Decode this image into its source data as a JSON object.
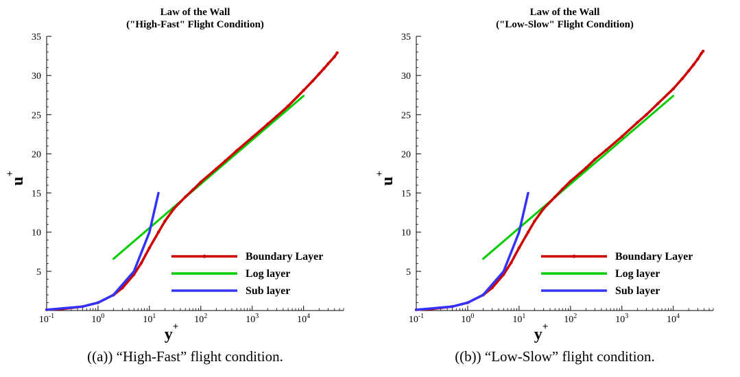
{
  "chart_data": [
    {
      "type": "line",
      "title": "Law of the Wall",
      "subtitle": "(\"High-Fast\" Flight Condition)",
      "xlabel": "y",
      "xlabel_sup": "+",
      "ylabel": "u",
      "ylabel_sup": "+",
      "x_scale": "log",
      "xlim": [
        0.1,
        60000
      ],
      "ylim": [
        0,
        35
      ],
      "x_tick_labels": [
        {
          "base": "10",
          "exp": "-1"
        },
        {
          "base": "10",
          "exp": "0"
        },
        {
          "base": "10",
          "exp": "1"
        },
        {
          "base": "10",
          "exp": "2"
        },
        {
          "base": "10",
          "exp": "3"
        },
        {
          "base": "10",
          "exp": "4"
        }
      ],
      "y_ticks": [
        5,
        10,
        15,
        20,
        25,
        30,
        35
      ],
      "grid": false,
      "legend_position": "bottom-right",
      "series": [
        {
          "name": "Boundary Layer",
          "color": "#cc0000",
          "x": [
            0.1,
            0.2,
            0.5,
            1,
            2,
            3,
            5,
            7,
            10,
            15,
            20,
            30,
            50,
            70,
            100,
            200,
            300,
            500,
            1000,
            2000,
            3000,
            5000,
            10000,
            15000,
            20000,
            25000,
            30000,
            40000,
            45000
          ],
          "y": [
            0.1,
            0.2,
            0.5,
            1.0,
            1.98,
            2.9,
            4.6,
            6.1,
            8.0,
            10.0,
            11.4,
            13.0,
            14.5,
            15.4,
            16.4,
            18.1,
            19.1,
            20.4,
            22.1,
            23.8,
            24.8,
            26.1,
            28.1,
            29.3,
            30.2,
            30.9,
            31.5,
            32.4,
            32.9
          ]
        },
        {
          "name": "Log layer",
          "color": "#00cc00",
          "x": [
            2,
            10000
          ],
          "y": [
            6.6,
            27.4
          ]
        },
        {
          "name": "Sub layer",
          "color": "#3333ff",
          "x": [
            0.1,
            0.5,
            1,
            2,
            5,
            10,
            15
          ],
          "y": [
            0.1,
            0.5,
            1,
            2,
            5,
            10,
            15
          ]
        }
      ]
    },
    {
      "type": "line",
      "title": "Law of the Wall",
      "subtitle": "(\"Low-Slow\" Flight Condition)",
      "xlabel": "y",
      "xlabel_sup": "+",
      "ylabel": "u",
      "ylabel_sup": "+",
      "x_scale": "log",
      "xlim": [
        0.1,
        60000
      ],
      "ylim": [
        0,
        35
      ],
      "x_tick_labels": [
        {
          "base": "10",
          "exp": "-1"
        },
        {
          "base": "10",
          "exp": "0"
        },
        {
          "base": "10",
          "exp": "1"
        },
        {
          "base": "10",
          "exp": "2"
        },
        {
          "base": "10",
          "exp": "3"
        },
        {
          "base": "10",
          "exp": "4"
        }
      ],
      "y_ticks": [
        5,
        10,
        15,
        20,
        25,
        30,
        35
      ],
      "grid": false,
      "legend_position": "bottom-right",
      "series": [
        {
          "name": "Boundary Layer",
          "color": "#cc0000",
          "x": [
            0.1,
            0.2,
            0.5,
            1,
            2,
            3,
            5,
            7,
            10,
            15,
            20,
            30,
            50,
            70,
            100,
            200,
            300,
            500,
            1000,
            2000,
            3000,
            5000,
            10000,
            15000,
            20000,
            25000,
            30000,
            35000,
            38000
          ],
          "y": [
            0.1,
            0.2,
            0.5,
            1.0,
            1.98,
            2.9,
            4.6,
            6.1,
            8.0,
            10.0,
            11.4,
            13.0,
            14.5,
            15.5,
            16.5,
            18.2,
            19.3,
            20.5,
            22.2,
            24.0,
            25.0,
            26.4,
            28.3,
            29.6,
            30.6,
            31.4,
            32.1,
            32.8,
            33.1
          ]
        },
        {
          "name": "Log layer",
          "color": "#00cc00",
          "x": [
            2,
            10000
          ],
          "y": [
            6.6,
            27.4
          ]
        },
        {
          "name": "Sub layer",
          "color": "#3333ff",
          "x": [
            0.1,
            0.5,
            1,
            2,
            5,
            10,
            15
          ],
          "y": [
            0.1,
            0.5,
            1,
            2,
            5,
            10,
            15
          ]
        }
      ]
    }
  ],
  "captions": [
    "((a)) “High-Fast” flight condition.",
    "((b)) “Low-Slow” flight condition."
  ]
}
